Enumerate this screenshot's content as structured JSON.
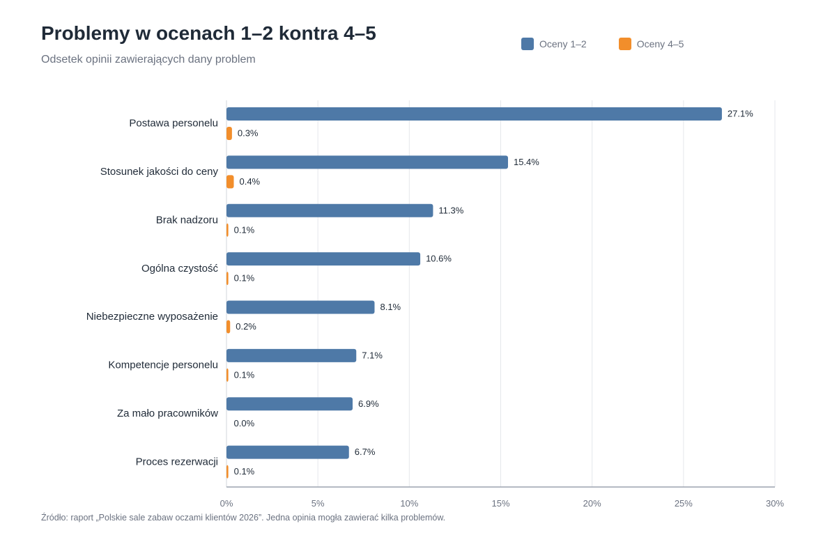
{
  "title": "Problemy w ocenach 1–2 kontra 4–5",
  "subtitle": "Odsetek opinii zawierających dany problem",
  "source": "Źródło: raport „Polskie sale zabaw oczami klientów 2026”. Jedna opinia mogła zawierać kilka problemów.",
  "legend": [
    {
      "label": "Oceny 1–2",
      "color": "#4e79a7"
    },
    {
      "label": "Oceny 4–5",
      "color": "#f28e2b"
    }
  ],
  "chart_data": {
    "type": "bar",
    "orientation": "horizontal",
    "title": "Problemy w ocenach 1–2 kontra 4–5",
    "subtitle": "Odsetek opinii zawierających dany problem",
    "categories": [
      "Postawa personelu",
      "Stosunek jakości do ceny",
      "Brak nadzoru",
      "Ogólna czystość",
      "Niebezpieczne wyposażenie",
      "Kompetencje personelu",
      "Za mało pracowników",
      "Proces rezerwacji"
    ],
    "series": [
      {
        "name": "Oceny 1–2",
        "color": "#4e79a7",
        "values": [
          27.1,
          15.4,
          11.3,
          10.6,
          8.1,
          7.1,
          6.9,
          6.7
        ],
        "labels": [
          "27.1%",
          "15.4%",
          "11.3%",
          "10.6%",
          "8.1%",
          "7.1%",
          "6.9%",
          "6.7%"
        ]
      },
      {
        "name": "Oceny 4–5",
        "color": "#f28e2b",
        "values": [
          0.3,
          0.4,
          0.1,
          0.1,
          0.2,
          0.1,
          0.0,
          0.1
        ],
        "labels": [
          "0.3%",
          "0.4%",
          "0.1%",
          "0.1%",
          "0.2%",
          "0.1%",
          "0.0%",
          "0.1%"
        ]
      }
    ],
    "xlim": [
      0,
      30
    ],
    "xticks": [
      0,
      5,
      10,
      15,
      20,
      25,
      30
    ],
    "xtick_labels": [
      "0%",
      "5%",
      "10%",
      "15%",
      "20%",
      "25%",
      "30%"
    ],
    "grid": "vertical",
    "legend_position": "top-right"
  }
}
